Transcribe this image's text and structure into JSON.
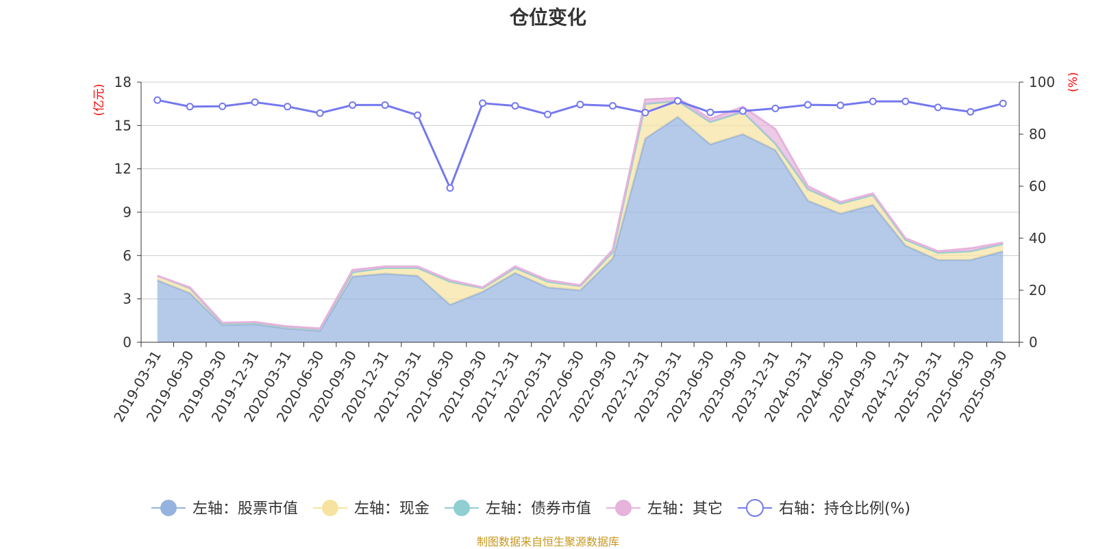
{
  "chart_data": {
    "type": "area",
    "title": "仓位变化",
    "source": "制图数据来自恒生聚源数据库",
    "left_axis": {
      "unit": "(亿元)",
      "ylim": [
        0,
        18
      ],
      "ticks": [
        0,
        3,
        6,
        9,
        12,
        15,
        18
      ]
    },
    "right_axis": {
      "unit": "(%)",
      "ylim": [
        0,
        100
      ],
      "ticks": [
        0,
        20,
        40,
        60,
        80,
        100
      ]
    },
    "categories": [
      "2019-03-31",
      "2019-06-30",
      "2019-09-30",
      "2019-12-31",
      "2020-03-31",
      "2020-06-30",
      "2020-09-30",
      "2020-12-31",
      "2021-03-31",
      "2021-06-30",
      "2021-09-30",
      "2021-12-31",
      "2022-03-31",
      "2022-06-30",
      "2022-09-30",
      "2022-12-31",
      "2023-03-31",
      "2023-06-30",
      "2023-09-30",
      "2023-12-31",
      "2024-03-31",
      "2024-06-30",
      "2024-09-30",
      "2024-12-31",
      "2025-03-31",
      "2025-06-30",
      "2025-09-30"
    ],
    "series": [
      {
        "name": "左轴：股票市值",
        "axis": "left",
        "stack": true,
        "color": "#95b3df",
        "values": [
          4.3,
          3.4,
          1.2,
          1.25,
          0.95,
          0.8,
          4.55,
          4.75,
          4.6,
          2.6,
          3.5,
          4.8,
          3.8,
          3.6,
          5.8,
          14.1,
          15.6,
          13.7,
          14.4,
          13.3,
          9.8,
          8.9,
          9.5,
          6.7,
          5.7,
          5.7,
          6.3
        ]
      },
      {
        "name": "左轴：现金",
        "axis": "left",
        "stack": true,
        "color": "#f6e3a0",
        "values": [
          0.3,
          0.35,
          0.1,
          0.1,
          0.1,
          0.1,
          0.3,
          0.4,
          0.55,
          1.6,
          0.25,
          0.35,
          0.4,
          0.3,
          0.45,
          2.4,
          1.1,
          1.55,
          1.55,
          0.45,
          0.8,
          0.7,
          0.7,
          0.4,
          0.5,
          0.6,
          0.5
        ]
      },
      {
        "name": "左轴：债券市值",
        "axis": "left",
        "stack": true,
        "color": "#8fcfd1",
        "values": [
          0,
          0,
          0,
          0,
          0,
          0,
          0,
          0,
          0,
          0,
          0,
          0,
          0,
          0,
          0,
          0,
          0,
          0,
          0,
          0,
          0,
          0,
          0,
          0,
          0,
          0,
          0
        ]
      },
      {
        "name": "左轴：其它",
        "axis": "left",
        "stack": true,
        "color": "#e6b3dc",
        "values": [
          0,
          0.05,
          0.05,
          0.05,
          0.05,
          0.05,
          0.15,
          0.1,
          0.1,
          0.1,
          0.05,
          0.1,
          0.1,
          0.05,
          0.15,
          0.3,
          0.2,
          0.2,
          0.35,
          1.0,
          0.2,
          0.1,
          0.1,
          0.1,
          0.1,
          0.2,
          0.1
        ]
      },
      {
        "name": "右轴：持仓比例(%)",
        "axis": "right",
        "stack": false,
        "color": "#7478ee",
        "values": [
          93.1,
          90.6,
          90.7,
          92.3,
          90.6,
          88.1,
          91.2,
          91.2,
          87.3,
          59.3,
          91.9,
          90.9,
          87.6,
          91.4,
          90.9,
          88.3,
          92.8,
          88.4,
          88.9,
          89.9,
          91.3,
          91.1,
          92.6,
          92.6,
          90.3,
          88.6,
          91.8
        ]
      }
    ],
    "legend_position": "bottom",
    "grid": true
  }
}
